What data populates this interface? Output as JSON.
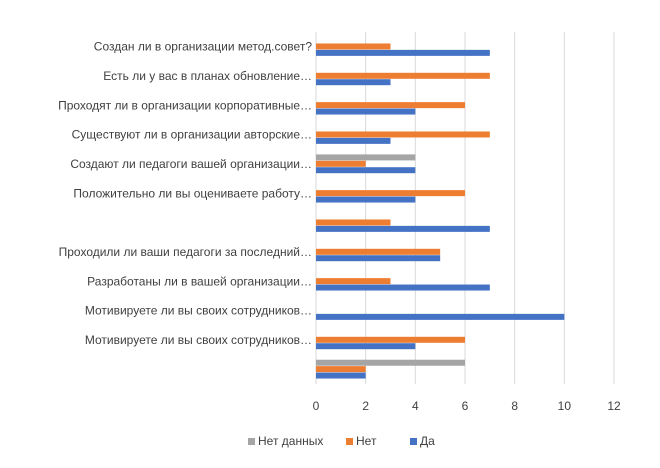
{
  "chart_data": {
    "type": "bar",
    "orientation": "horizontal",
    "categories": [
      "Создан ли в организации метод.совет?",
      "Есть ли у вас в планах обновление…",
      "Проходят ли в организации корпоративные…",
      "Существуют ли в организации авторские…",
      "Создают ли педагоги вашей организации…",
      "Положительно ли вы оцениваете работу…",
      "",
      "Проходили ли ваши педагоги за последний…",
      "Разработаны ли в вашей организации…",
      "Мотивируете ли вы своих сотрудников…",
      "Мотивируете ли вы своих сотрудников…",
      ""
    ],
    "series": [
      {
        "name": "Нет данных",
        "color": "#a5a5a5",
        "values": [
          0,
          0,
          0,
          0,
          4,
          0,
          0,
          0,
          0,
          0,
          0,
          6
        ]
      },
      {
        "name": "Нет",
        "color": "#ed7d31",
        "values": [
          3,
          7,
          6,
          7,
          2,
          6,
          3,
          5,
          3,
          0,
          6,
          2
        ]
      },
      {
        "name": "Да",
        "color": "#4472c4",
        "values": [
          7,
          3,
          4,
          3,
          4,
          4,
          7,
          5,
          7,
          10,
          4,
          2
        ]
      }
    ],
    "xlim": [
      0,
      12
    ],
    "xticks": [
      "0",
      "2",
      "4",
      "6",
      "8",
      "10",
      "12"
    ],
    "grid": true,
    "legend": "bottom",
    "title": "",
    "xlabel": "",
    "ylabel": ""
  }
}
